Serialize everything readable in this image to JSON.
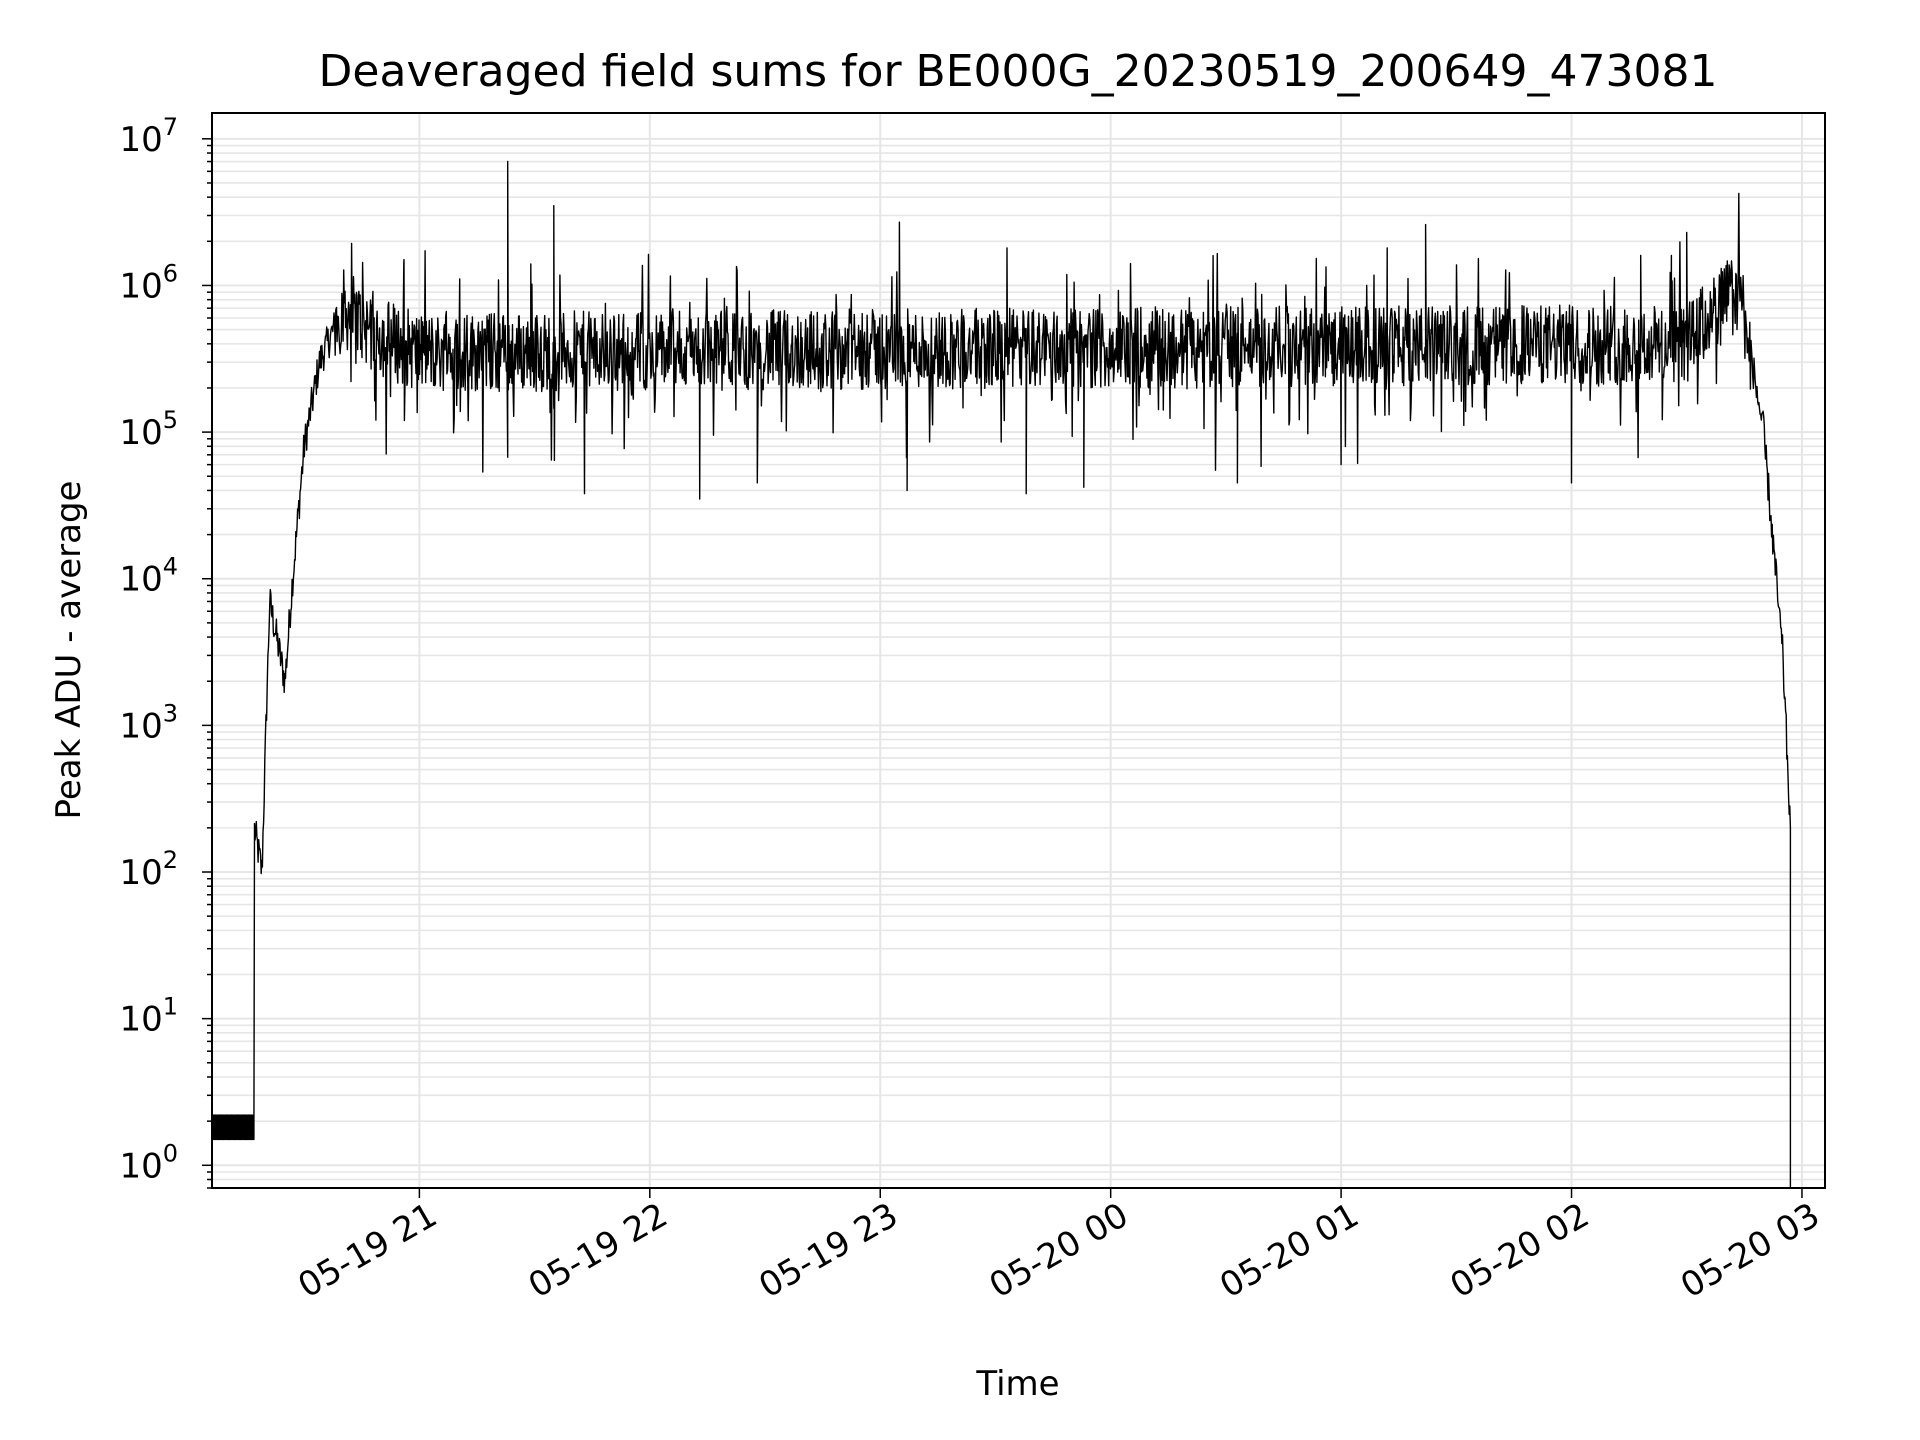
{
  "chart_data": {
    "type": "line",
    "title": "Deaveraged field sums for BE000G_20230519_200649_473081",
    "xlabel": "Time",
    "ylabel": "Peak ADU - average",
    "y_scale": "log",
    "ylim": [
      0.7,
      15000000
    ],
    "xlim": [
      "2023-05-19 20:06",
      "2023-05-20 03:06"
    ],
    "grid": true,
    "line_color": "#000000",
    "grid_color": "#e6e6e6",
    "x_ticks": [
      "05-19 21",
      "05-19 22",
      "05-19 23",
      "05-20 00",
      "05-20 01",
      "05-20 02",
      "05-20 03"
    ],
    "y_ticks": [
      {
        "base": "10",
        "exp": "0",
        "value": 1
      },
      {
        "base": "10",
        "exp": "1",
        "value": 10
      },
      {
        "base": "10",
        "exp": "2",
        "value": 100
      },
      {
        "base": "10",
        "exp": "3",
        "value": 1000
      },
      {
        "base": "10",
        "exp": "4",
        "value": 10000
      },
      {
        "base": "10",
        "exp": "5",
        "value": 100000
      },
      {
        "base": "10",
        "exp": "6",
        "value": 1000000
      },
      {
        "base": "10",
        "exp": "7",
        "value": 10000000
      }
    ],
    "series": [
      {
        "baseline": 350000,
        "points": [
          [
            "2023-05-19 20:06",
            2
          ],
          [
            "2023-05-19 20:16",
            2
          ],
          [
            "2023-05-19 20:17",
            200
          ],
          [
            "2023-05-19 20:19",
            100
          ],
          [
            "2023-05-19 20:21",
            7000
          ],
          [
            "2023-05-19 20:25",
            2000
          ],
          [
            "2023-05-19 20:27",
            10000
          ],
          [
            "2023-05-19 20:30",
            80000
          ],
          [
            "2023-05-19 20:34",
            300000
          ],
          [
            "2023-05-19 20:40",
            700000
          ],
          [
            "2023-05-19 20:50",
            450000
          ],
          [
            "2023-05-19 21:00",
            350000
          ],
          [
            "2023-05-20 02:30",
            400000
          ],
          [
            "2023-05-20 02:40",
            800000
          ],
          [
            "2023-05-20 02:44",
            900000
          ],
          [
            "2023-05-20 02:50",
            100000
          ],
          [
            "2023-05-20 02:55",
            3000
          ],
          [
            "2023-05-20 02:57",
            200
          ],
          [
            "2023-05-20 02:57",
            0.7
          ]
        ],
        "spikes": [
          [
            "2023-05-19 21:23",
            7000000
          ],
          [
            "2023-05-19 21:35",
            3500000
          ],
          [
            "2023-05-19 21:29",
            1400000
          ],
          [
            "2023-05-19 20:56",
            1500000
          ],
          [
            "2023-05-19 23:05",
            2700000
          ],
          [
            "2023-05-19 23:33",
            1800000
          ],
          [
            "2023-05-20 01:12",
            1800000
          ],
          [
            "2023-05-20 01:22",
            2600000
          ],
          [
            "2023-05-20 02:18",
            1600000
          ],
          [
            "2023-05-20 02:30",
            2300000
          ],
          [
            "2023-05-20 02:26",
            1600000
          ]
        ],
        "dips": [
          [
            "2023-05-19 21:43",
            38000
          ],
          [
            "2023-05-19 22:13",
            35000
          ],
          [
            "2023-05-19 22:28",
            45000
          ],
          [
            "2023-05-19 23:07",
            40000
          ],
          [
            "2023-05-19 23:38",
            38000
          ],
          [
            "2023-05-19 23:53",
            42000
          ],
          [
            "2023-05-20 00:33",
            45000
          ],
          [
            "2023-05-20 01:00",
            60000
          ],
          [
            "2023-05-20 02:00",
            45000
          ]
        ]
      }
    ]
  }
}
